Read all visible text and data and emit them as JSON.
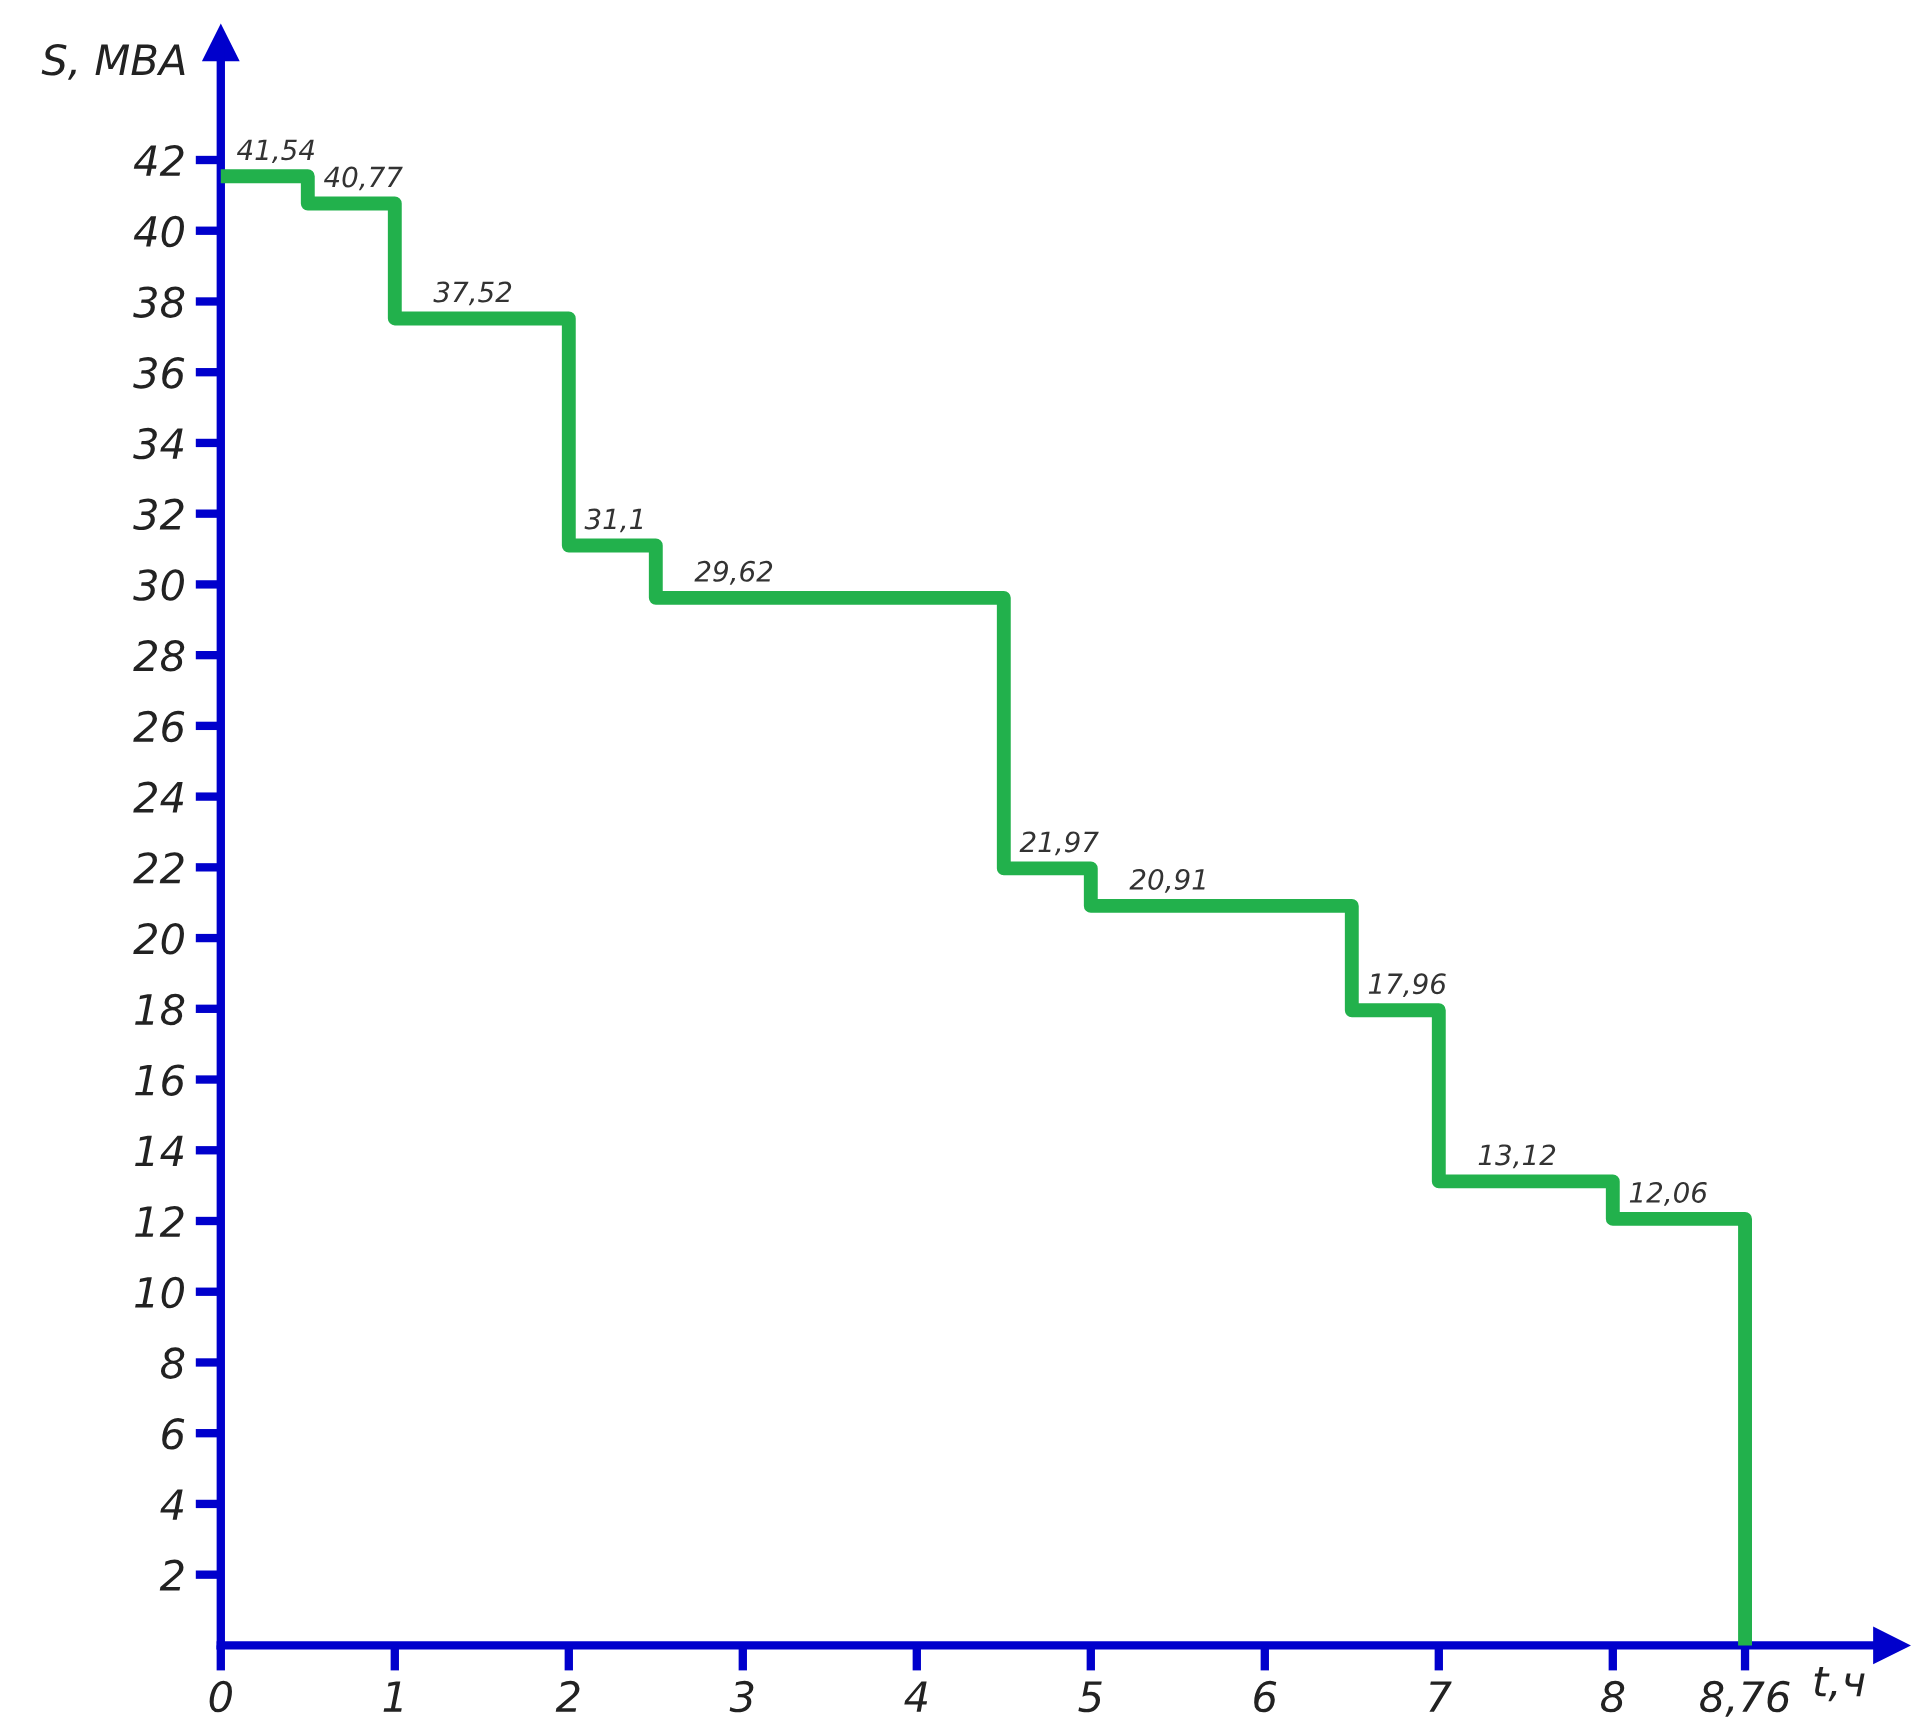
{
  "chart_data": {
    "type": "step",
    "xlabel": "t,ч",
    "ylabel": "S, MBA",
    "x": [
      0,
      0.5,
      1,
      2,
      2.5,
      4.5,
      5,
      6.5,
      7,
      8,
      8.76
    ],
    "series": [
      {
        "color": "#22b14c",
        "values": [
          41.54,
          40.77,
          37.52,
          31.1,
          29.62,
          21.97,
          20.91,
          17.96,
          13.12,
          12.06,
          0
        ],
        "value_labels": [
          "41,54",
          "40,77",
          "37,52",
          "31,1",
          "29,62",
          "21,97",
          "20,91",
          "17,96",
          "13,12",
          "12,06",
          null
        ]
      }
    ],
    "xlim": [
      0,
      9.6
    ],
    "ylim": [
      0,
      45.3
    ],
    "xticks": [
      0,
      1,
      2,
      3,
      4,
      5,
      6,
      7,
      8,
      {
        "value": 8.76,
        "label": "8,76"
      }
    ],
    "yticks": [
      2,
      4,
      6,
      8,
      10,
      12,
      14,
      16,
      18,
      20,
      22,
      24,
      26,
      28,
      30,
      32,
      34,
      36,
      38,
      40,
      42
    ],
    "grid": false,
    "legend": false
  }
}
